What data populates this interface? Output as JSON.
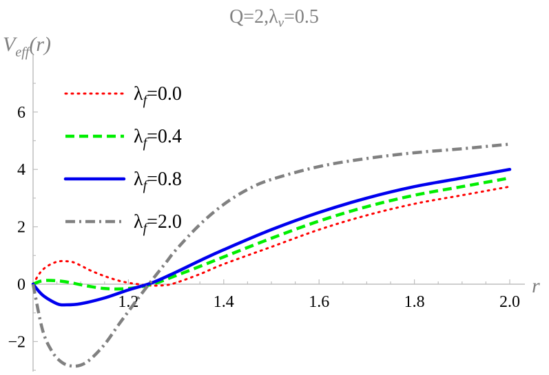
{
  "chart_data": {
    "type": "line",
    "title": {
      "prefix": "Q=2,",
      "lambda": "λ",
      "sub": "v",
      "suffix": "=0.5"
    },
    "ylabel": {
      "main": "V",
      "sub": "eff",
      "suffix": "(r)"
    },
    "xlabel": "r",
    "xlim": [
      1.0,
      2.0
    ],
    "ylim": [
      -3.0,
      7.0
    ],
    "x_ticks": [
      "1.2",
      "1.4",
      "1.6",
      "1.8",
      "2.0"
    ],
    "x_tick_values": [
      1.2,
      1.4,
      1.6,
      1.8,
      2.0
    ],
    "y_ticks": [
      "−2",
      "0",
      "2",
      "4",
      "6"
    ],
    "y_tick_values": [
      -2,
      0,
      2,
      4,
      6
    ],
    "legend_position": "top-left",
    "grid": false,
    "series": [
      {
        "name": "λ",
        "name_sub": "f",
        "name_value": "=0.0",
        "color": "#ff0000",
        "style": "dotted",
        "x": [
          1.0,
          1.02,
          1.05,
          1.08,
          1.1,
          1.12,
          1.15,
          1.18,
          1.2,
          1.22,
          1.25,
          1.28,
          1.3,
          1.35,
          1.4,
          1.5,
          1.6,
          1.7,
          1.8,
          1.9,
          2.0
        ],
        "y": [
          0.0,
          0.5,
          0.78,
          0.78,
          0.65,
          0.48,
          0.28,
          0.12,
          0.05,
          0.0,
          -0.05,
          -0.03,
          0.05,
          0.35,
          0.7,
          1.3,
          1.9,
          2.4,
          2.8,
          3.1,
          3.4
        ]
      },
      {
        "name": "λ",
        "name_sub": "f",
        "name_value": "=0.4",
        "color": "#00ee00",
        "style": "dashed",
        "x": [
          1.0,
          1.02,
          1.05,
          1.08,
          1.1,
          1.15,
          1.2,
          1.25,
          1.3,
          1.35,
          1.4,
          1.5,
          1.6,
          1.7,
          1.8,
          1.9,
          2.0
        ],
        "y": [
          0.0,
          0.12,
          0.12,
          0.05,
          -0.02,
          -0.15,
          -0.15,
          0.0,
          0.3,
          0.62,
          0.95,
          1.6,
          2.2,
          2.7,
          3.1,
          3.4,
          3.7
        ]
      },
      {
        "name": "λ",
        "name_sub": "f",
        "name_value": "=0.8",
        "color": "#0000ee",
        "style": "solid",
        "x": [
          1.0,
          1.02,
          1.05,
          1.07,
          1.1,
          1.15,
          1.2,
          1.25,
          1.3,
          1.35,
          1.4,
          1.5,
          1.6,
          1.7,
          1.8,
          1.9,
          2.0
        ],
        "y": [
          0.0,
          -0.38,
          -0.68,
          -0.72,
          -0.68,
          -0.48,
          -0.2,
          0.05,
          0.42,
          0.82,
          1.2,
          1.9,
          2.5,
          3.0,
          3.4,
          3.7,
          4.0
        ]
      },
      {
        "name": "λ",
        "name_sub": "f",
        "name_value": "=2.0",
        "color": "#808080",
        "style": "dashdot",
        "x": [
          1.0,
          1.02,
          1.04,
          1.06,
          1.08,
          1.1,
          1.12,
          1.15,
          1.18,
          1.2,
          1.22,
          1.25,
          1.28,
          1.3,
          1.35,
          1.4,
          1.45,
          1.5,
          1.6,
          1.7,
          1.8,
          1.9,
          2.0
        ],
        "y": [
          0.0,
          -1.6,
          -2.35,
          -2.72,
          -2.85,
          -2.82,
          -2.62,
          -2.1,
          -1.4,
          -0.95,
          -0.5,
          0.15,
          0.78,
          1.2,
          2.08,
          2.78,
          3.3,
          3.65,
          4.1,
          4.38,
          4.58,
          4.72,
          4.88
        ]
      }
    ]
  }
}
